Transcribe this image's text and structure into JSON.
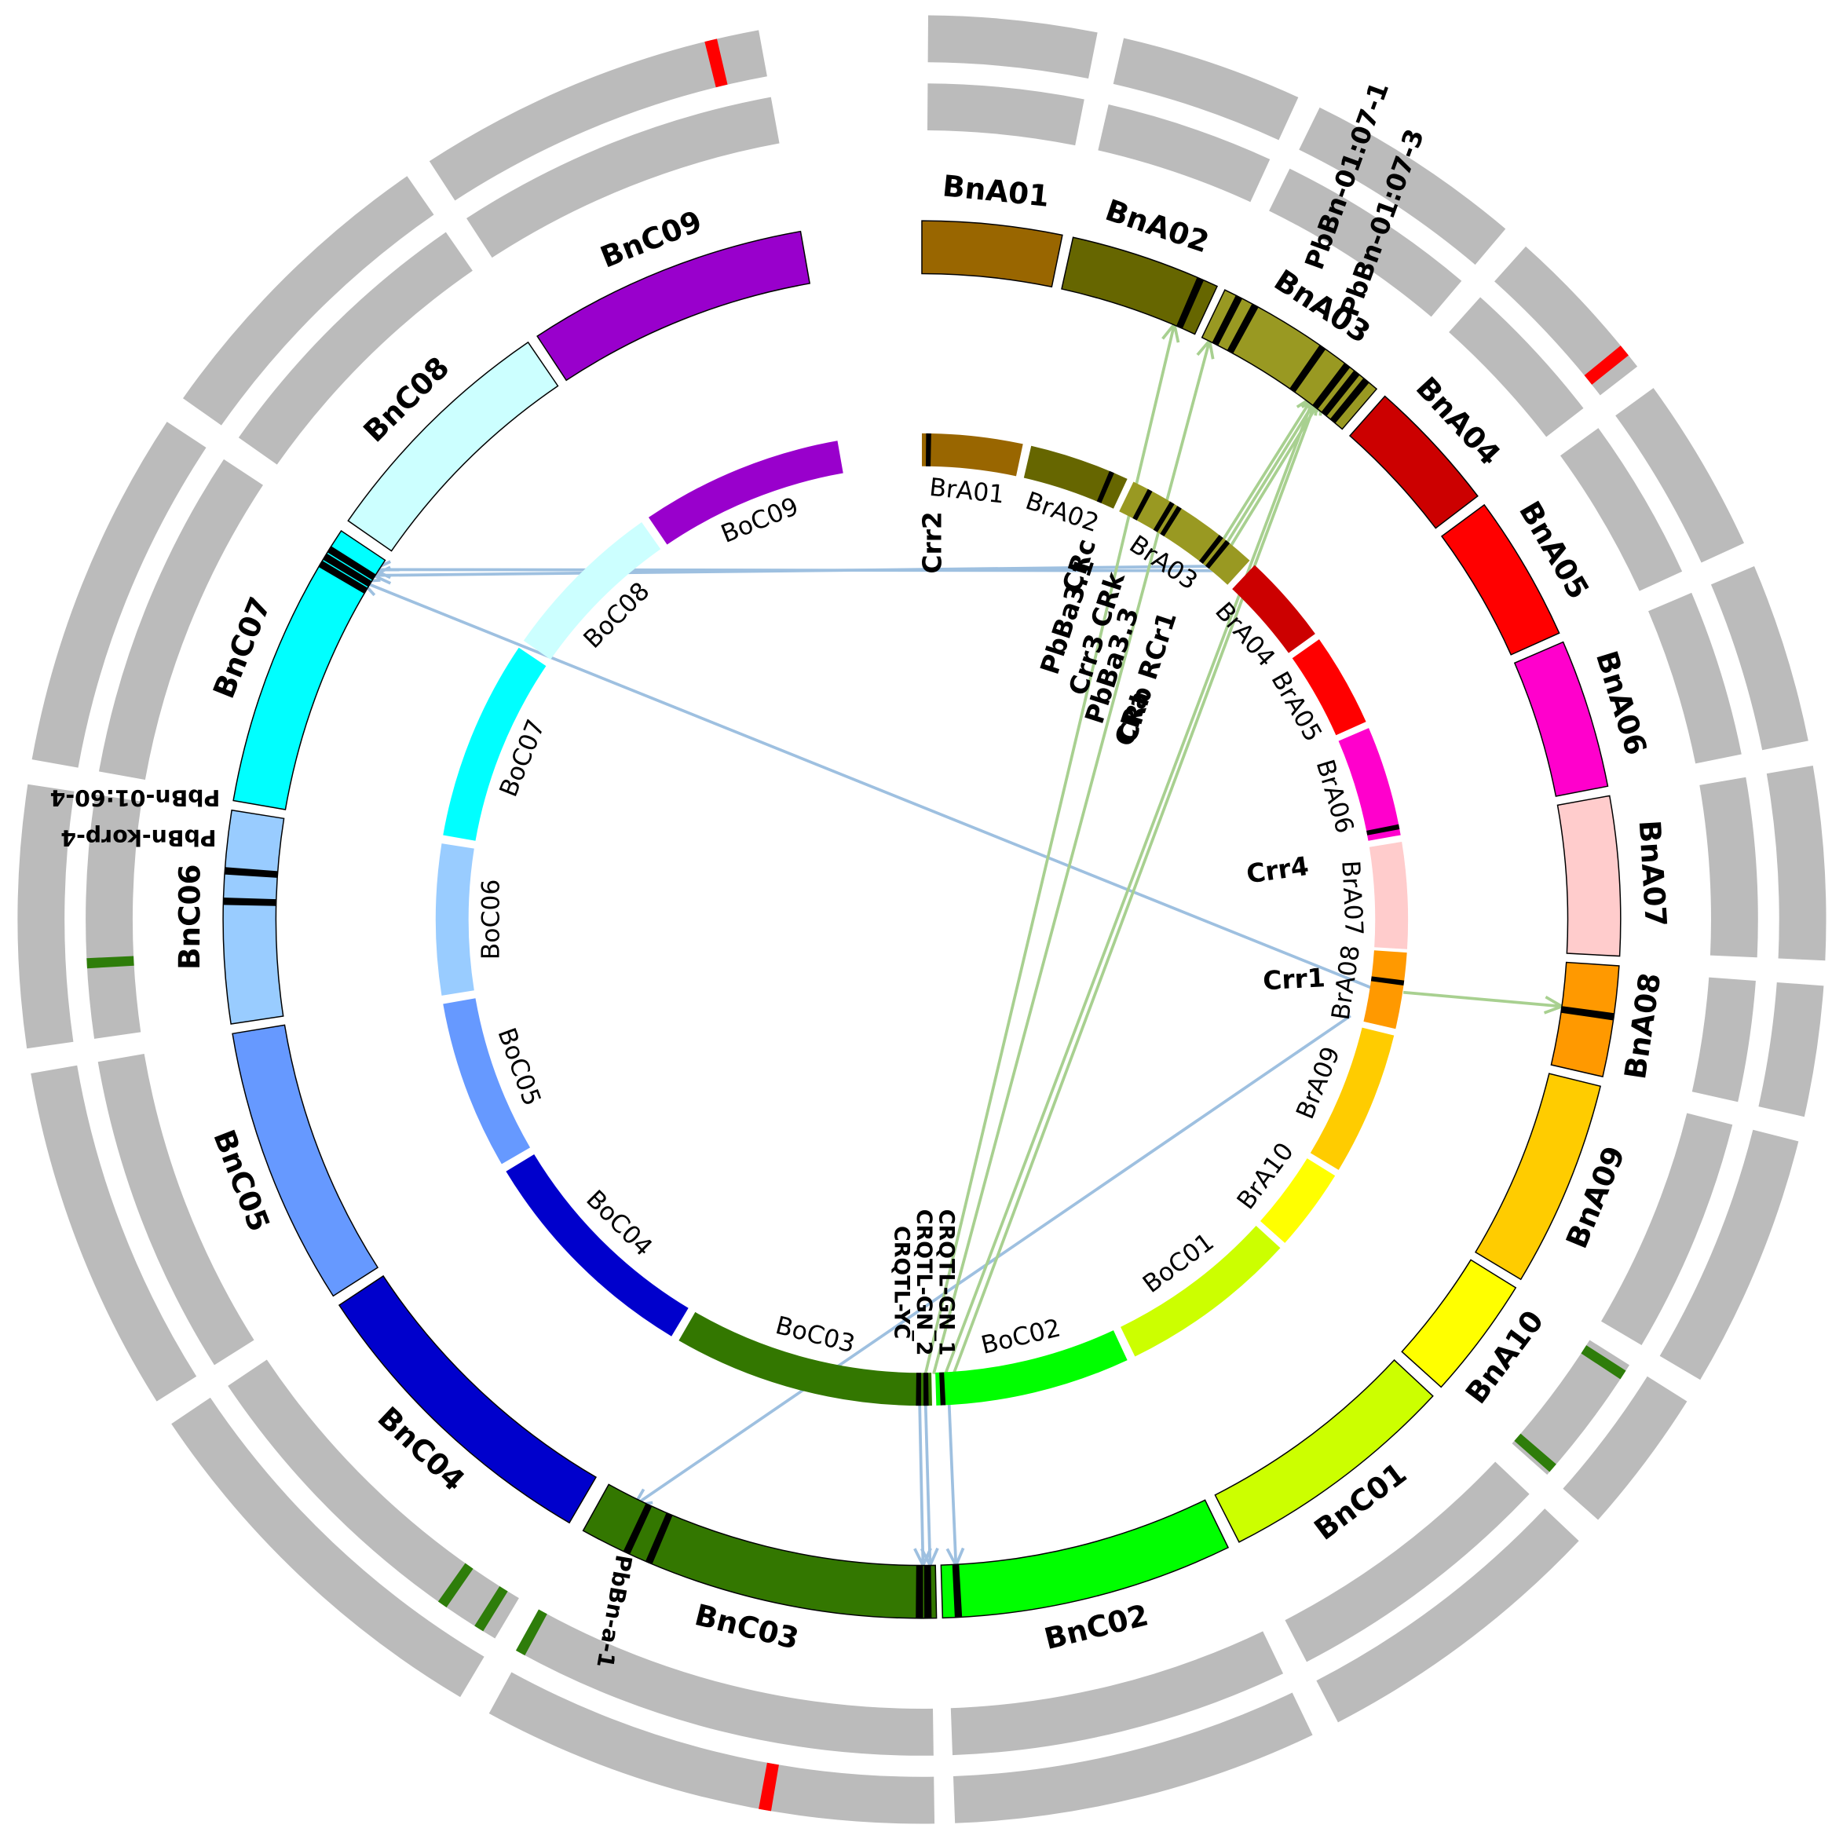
{
  "inner_ring": {
    "labels": [
      "BrA01",
      "BrA02",
      "BrA03",
      "BrA04",
      "BrA05",
      "BrA06",
      "BrA07",
      "BrA08",
      "BrA09",
      "BrA10",
      "BoC01",
      "BoC02",
      "BoC03",
      "BoC04",
      "BoC05",
      "BoC06",
      "BoC07",
      "BoC08",
      "BoC09"
    ]
  },
  "middle_ring": {
    "labels": [
      "BnA01",
      "BnA02",
      "BnA03",
      "BnA04",
      "BnA05",
      "BnA06",
      "BnA07",
      "BnA08",
      "BnA09",
      "BnA10",
      "BnC01",
      "BnC02",
      "BnC03",
      "BnC04",
      "BnC05",
      "BnC06",
      "BnC07",
      "BnC08",
      "BnC09"
    ]
  },
  "gene_labels": [
    "Crr2",
    "CRc",
    "PbBa3.1",
    "Crr3 CRk",
    "PbBa3.3",
    "CRb RCr1",
    "CRa",
    "Crr4",
    "Crr1",
    "CRQTL-GN_1",
    "CRQTL-GN_2",
    "CRQTL-YC",
    "PbBn-01:07-1",
    "PbBn-01:07-3",
    "PbBn-01:60-4",
    "PbBn-korp-4",
    "PbBn-a-1"
  ]
}
